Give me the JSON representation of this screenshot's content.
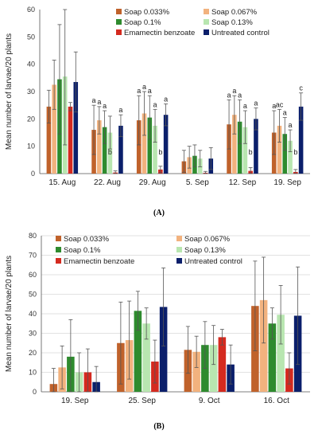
{
  "chart_data": [
    {
      "type": "bar",
      "panel_label": "(A)",
      "title": "",
      "xlabel": "",
      "ylabel": "Mean number of larvae/20 plants",
      "ylim": [
        0,
        60
      ],
      "yticks": [
        0,
        10,
        20,
        30,
        40,
        50,
        60
      ],
      "grid": false,
      "legend_position": "top-right",
      "categories": [
        "15. Aug",
        "22. Aug",
        "29. Aug",
        "5. Sep",
        "12. Sep",
        "19. Sep"
      ],
      "series": [
        {
          "name": "Soap 0.033%",
          "color": "#c0622b",
          "values": [
            24.5,
            16.0,
            19.5,
            4.5,
            18.0,
            15.0
          ],
          "errors": [
            6,
            9,
            9,
            4,
            9,
            8
          ]
        },
        {
          "name": "Soap 0.067%",
          "color": "#f2b27e",
          "values": [
            32.5,
            19.5,
            22.0,
            6.0,
            21.5,
            17.5
          ],
          "errors": [
            9,
            5,
            8,
            4,
            7,
            6
          ]
        },
        {
          "name": "Soap 0.1%",
          "color": "#2e8b2e",
          "values": [
            34.5,
            17.0,
            20.5,
            6.5,
            19.0,
            14.5
          ],
          "errors": [
            20,
            6,
            8,
            4,
            8,
            6
          ]
        },
        {
          "name": "Soap 0.13%",
          "color": "#b8e6b0",
          "values": [
            35.5,
            15.0,
            17.5,
            5.5,
            17.0,
            12.0
          ],
          "errors": [
            25,
            6,
            6,
            3,
            6,
            4
          ]
        },
        {
          "name": "Emamectin benzoate",
          "color": "#d42a1f",
          "values": [
            24.5,
            0.4,
            1.5,
            0.3,
            1.0,
            0.6
          ],
          "errors": [
            1.5,
            0.6,
            1.2,
            0.5,
            1.2,
            0.9
          ]
        },
        {
          "name": "Untreated control",
          "color": "#0b1f6b",
          "values": [
            33.5,
            17.5,
            21.5,
            5.5,
            20.0,
            24.5
          ],
          "errors": [
            11,
            4,
            4,
            4,
            4,
            5
          ]
        }
      ],
      "annotations": [
        {
          "category": 1,
          "labels": [
            "a",
            "a",
            "a",
            "",
            "",
            "a"
          ],
          "extra": [
            {
              "series": 3,
              "text": "b"
            }
          ]
        },
        {
          "category": 2,
          "labels": [
            "a",
            "a",
            "a",
            "a",
            "",
            "a"
          ],
          "extra": [
            {
              "series": 4,
              "text": "b"
            }
          ]
        },
        {
          "category": 4,
          "labels": [
            "a",
            "a",
            "a",
            "a",
            "",
            "a"
          ],
          "extra": [
            {
              "series": 4,
              "text": "b"
            }
          ]
        },
        {
          "category": 5,
          "labels": [
            "a",
            "ac",
            "a",
            "a",
            "",
            "c"
          ],
          "extra": [
            {
              "series": 4,
              "text": "b"
            }
          ]
        }
      ]
    },
    {
      "type": "bar",
      "panel_label": "(B)",
      "title": "",
      "xlabel": "",
      "ylabel": "Mean number of larvae/20 plants",
      "ylim": [
        0,
        80
      ],
      "yticks": [
        0,
        10,
        20,
        30,
        40,
        50,
        60,
        70,
        80
      ],
      "grid": true,
      "legend_position": "top",
      "categories": [
        "19. Sep",
        "25. Sep",
        "9. Oct",
        "16. Oct"
      ],
      "series": [
        {
          "name": "Soap 0.033%",
          "color": "#c0622b",
          "values": [
            4.0,
            25.0,
            21.5,
            44.0
          ],
          "errors": [
            8,
            21,
            12,
            23
          ]
        },
        {
          "name": "Soap 0.067%",
          "color": "#f2b27e",
          "values": [
            12.5,
            26.5,
            20.5,
            47.0
          ],
          "errors": [
            11,
            20,
            8,
            22
          ]
        },
        {
          "name": "Soap 0.1%",
          "color": "#2e8b2e",
          "values": [
            18.0,
            41.5,
            24.0,
            35.0
          ],
          "errors": [
            19,
            10,
            12,
            8
          ]
        },
        {
          "name": "Soap 0.13%",
          "color": "#b8e6b0",
          "values": [
            10.0,
            35.0,
            24.0,
            39.5
          ],
          "errors": [
            10,
            8,
            10,
            15
          ]
        },
        {
          "name": "Emamectin benzoate",
          "color": "#d42a1f",
          "values": [
            10.0,
            15.5,
            28.0,
            12.0
          ],
          "errors": [
            12,
            11,
            4,
            8
          ]
        },
        {
          "name": "Untreated control",
          "color": "#0b1f6b",
          "values": [
            5.0,
            43.5,
            14.0,
            39.0
          ],
          "errors": [
            8,
            20,
            10,
            25
          ]
        }
      ]
    }
  ]
}
